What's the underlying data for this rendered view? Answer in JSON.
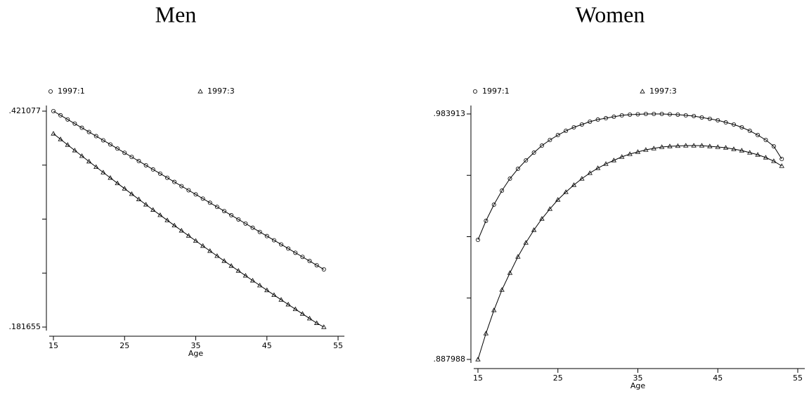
{
  "chart_data": [
    {
      "type": "line",
      "title": "Men",
      "xlabel": "Age",
      "x": [
        15,
        16,
        17,
        18,
        19,
        20,
        21,
        22,
        23,
        24,
        25,
        26,
        27,
        28,
        29,
        30,
        31,
        32,
        33,
        34,
        35,
        36,
        37,
        38,
        39,
        40,
        41,
        42,
        43,
        44,
        45,
        46,
        47,
        48,
        49,
        50,
        51,
        52,
        53
      ],
      "xlim": [
        15,
        55
      ],
      "xticks": [
        15,
        25,
        35,
        45,
        55
      ],
      "ylim": [
        0.181655,
        0.421077
      ],
      "yticks": [
        {
          "value": 0.181655,
          "label": ".181655"
        },
        {
          "value": 0.421077,
          "label": ".421077"
        }
      ],
      "y_minor_ticks": [
        0.241511,
        0.301366,
        0.361222
      ],
      "series": [
        {
          "name": "1997:1",
          "color": "#000000",
          "marker": "circle",
          "values": [
            0.421077,
            0.41646,
            0.41184,
            0.40723,
            0.40261,
            0.39799,
            0.39337,
            0.38875,
            0.38414,
            0.37952,
            0.3749,
            0.37028,
            0.36566,
            0.36105,
            0.35643,
            0.35181,
            0.34719,
            0.34257,
            0.33796,
            0.33334,
            0.32872,
            0.3241,
            0.31948,
            0.31487,
            0.31025,
            0.30563,
            0.30101,
            0.29639,
            0.29178,
            0.28716,
            0.28254,
            0.27792,
            0.2733,
            0.26869,
            0.26407,
            0.25945,
            0.25483,
            0.25021,
            0.2456
          ]
        },
        {
          "name": "1997:3",
          "color": "#000000",
          "marker": "triangle",
          "values": [
            0.39612,
            0.38988,
            0.38367,
            0.3775,
            0.37135,
            0.36524,
            0.35915,
            0.3531,
            0.34708,
            0.34109,
            0.33513,
            0.32921,
            0.32331,
            0.31745,
            0.31161,
            0.30581,
            0.30004,
            0.2943,
            0.28859,
            0.28291,
            0.27727,
            0.27165,
            0.26607,
            0.26051,
            0.25499,
            0.2495,
            0.24404,
            0.23862,
            0.23322,
            0.22785,
            0.22252,
            0.21721,
            0.21194,
            0.2067,
            0.20149,
            0.19632,
            0.19117,
            0.18605,
            0.181655
          ]
        }
      ]
    },
    {
      "type": "line",
      "title": "Women",
      "xlabel": "Age",
      "x": [
        15,
        16,
        17,
        18,
        19,
        20,
        21,
        22,
        23,
        24,
        25,
        26,
        27,
        28,
        29,
        30,
        31,
        32,
        33,
        34,
        35,
        36,
        37,
        38,
        39,
        40,
        41,
        42,
        43,
        44,
        45,
        46,
        47,
        48,
        49,
        50,
        51,
        52,
        53
      ],
      "xlim": [
        15,
        55
      ],
      "xticks": [
        15,
        25,
        35,
        45,
        55
      ],
      "ylim": [
        0.887988,
        0.983913
      ],
      "yticks": [
        {
          "value": 0.887988,
          "label": ".887988"
        },
        {
          "value": 0.983913,
          "label": ".983913"
        }
      ],
      "y_minor_ticks": [
        0.911969,
        0.93595,
        0.959932
      ],
      "series": [
        {
          "name": "1997:1",
          "color": "#000000",
          "marker": "circle",
          "values": [
            0.93471,
            0.94213,
            0.94845,
            0.95395,
            0.95862,
            0.96247,
            0.96577,
            0.96879,
            0.97154,
            0.97374,
            0.97566,
            0.97731,
            0.97869,
            0.97979,
            0.98089,
            0.98171,
            0.98226,
            0.98281,
            0.98336,
            0.98364,
            0.98378,
            0.98391,
            0.98391,
            0.98391,
            0.98378,
            0.98364,
            0.98336,
            0.98309,
            0.98254,
            0.98199,
            0.98144,
            0.98061,
            0.97979,
            0.97869,
            0.97731,
            0.97566,
            0.97374,
            0.97127,
            0.96632
          ]
        },
        {
          "name": "1997:3",
          "color": "#000000",
          "marker": "triangle",
          "values": [
            0.887988,
            0.89815,
            0.90722,
            0.91519,
            0.92179,
            0.92811,
            0.93361,
            0.93856,
            0.94296,
            0.9468,
            0.95038,
            0.9534,
            0.95615,
            0.95862,
            0.96082,
            0.96275,
            0.96439,
            0.96577,
            0.96714,
            0.96824,
            0.96907,
            0.96989,
            0.97044,
            0.97099,
            0.97127,
            0.9714,
            0.97154,
            0.97154,
            0.97154,
            0.97127,
            0.97099,
            0.97072,
            0.97017,
            0.96962,
            0.96879,
            0.96797,
            0.96687,
            0.96549,
            0.96357
          ]
        }
      ]
    }
  ]
}
